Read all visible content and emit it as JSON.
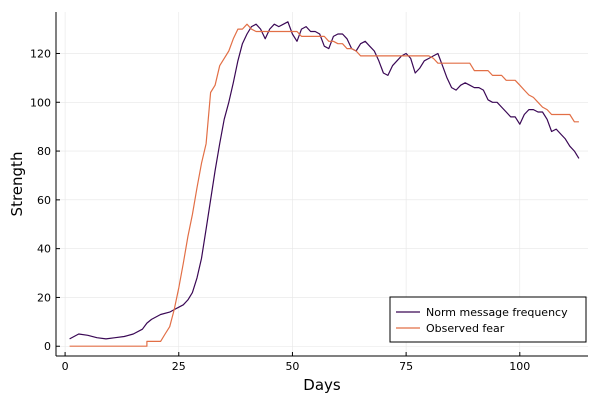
{
  "chart_data": {
    "type": "line",
    "title": "",
    "xlabel": "Days",
    "ylabel": "Strength",
    "xlim": [
      -2,
      115
    ],
    "ylim": [
      -4,
      137
    ],
    "xticks": [
      0,
      25,
      50,
      75,
      100
    ],
    "yticks": [
      0,
      20,
      40,
      60,
      80,
      100,
      120
    ],
    "grid": true,
    "legend_position": "bottom-right",
    "series": [
      {
        "name": "Norm message frequency",
        "color": "#3a0855",
        "points": [
          [
            1,
            3
          ],
          [
            3,
            5
          ],
          [
            5,
            4.5
          ],
          [
            7,
            3.5
          ],
          [
            9,
            3
          ],
          [
            11,
            3.5
          ],
          [
            13,
            4
          ],
          [
            15,
            5
          ],
          [
            17,
            7
          ],
          [
            18,
            9.5
          ],
          [
            19,
            11
          ],
          [
            21,
            13
          ],
          [
            23,
            14
          ],
          [
            24,
            15
          ],
          [
            25,
            16
          ],
          [
            26,
            17
          ],
          [
            27,
            19
          ],
          [
            28,
            22
          ],
          [
            29,
            28
          ],
          [
            30,
            36
          ],
          [
            31,
            48
          ],
          [
            32,
            60
          ],
          [
            33,
            72
          ],
          [
            34,
            83
          ],
          [
            35,
            93
          ],
          [
            36,
            100
          ],
          [
            37,
            108
          ],
          [
            38,
            117
          ],
          [
            39,
            124
          ],
          [
            40,
            128
          ],
          [
            41,
            131
          ],
          [
            42,
            132
          ],
          [
            43,
            130
          ],
          [
            44,
            126
          ],
          [
            45,
            130
          ],
          [
            46,
            132
          ],
          [
            47,
            131
          ],
          [
            48,
            132
          ],
          [
            49,
            133
          ],
          [
            50,
            128
          ],
          [
            51,
            125
          ],
          [
            52,
            130
          ],
          [
            53,
            131
          ],
          [
            54,
            129
          ],
          [
            55,
            129
          ],
          [
            56,
            128
          ],
          [
            57,
            123
          ],
          [
            58,
            122
          ],
          [
            59,
            127
          ],
          [
            60,
            128
          ],
          [
            61,
            128
          ],
          [
            62,
            126
          ],
          [
            63,
            122
          ],
          [
            64,
            121
          ],
          [
            65,
            124
          ],
          [
            66,
            125
          ],
          [
            67,
            123
          ],
          [
            68,
            121
          ],
          [
            69,
            117
          ],
          [
            70,
            112
          ],
          [
            71,
            111
          ],
          [
            72,
            115
          ],
          [
            73,
            117
          ],
          [
            74,
            119
          ],
          [
            75,
            120
          ],
          [
            76,
            118
          ],
          [
            77,
            112
          ],
          [
            78,
            114
          ],
          [
            79,
            117
          ],
          [
            80,
            118
          ],
          [
            81,
            119
          ],
          [
            82,
            120
          ],
          [
            83,
            115
          ],
          [
            84,
            110
          ],
          [
            85,
            106
          ],
          [
            86,
            105
          ],
          [
            87,
            107
          ],
          [
            88,
            108
          ],
          [
            89,
            107
          ],
          [
            90,
            106
          ],
          [
            91,
            106
          ],
          [
            92,
            105
          ],
          [
            93,
            101
          ],
          [
            94,
            100
          ],
          [
            95,
            100
          ],
          [
            96,
            98
          ],
          [
            97,
            96
          ],
          [
            98,
            94
          ],
          [
            99,
            94
          ],
          [
            100,
            91
          ],
          [
            101,
            95
          ],
          [
            102,
            97
          ],
          [
            103,
            97
          ],
          [
            104,
            96
          ],
          [
            105,
            96
          ],
          [
            106,
            93
          ],
          [
            107,
            88
          ],
          [
            108,
            89
          ],
          [
            109,
            87
          ],
          [
            110,
            85
          ],
          [
            111,
            82
          ],
          [
            112,
            80
          ],
          [
            113,
            77
          ]
        ]
      },
      {
        "name": "Observed fear",
        "color": "#e26f46",
        "points": [
          [
            1,
            0
          ],
          [
            18,
            0
          ],
          [
            18,
            2
          ],
          [
            21,
            2
          ],
          [
            22,
            5
          ],
          [
            23,
            8
          ],
          [
            24,
            15
          ],
          [
            25,
            24
          ],
          [
            26,
            34
          ],
          [
            27,
            45
          ],
          [
            28,
            54
          ],
          [
            29,
            65
          ],
          [
            30,
            75
          ],
          [
            31,
            83
          ],
          [
            32,
            104
          ],
          [
            33,
            107
          ],
          [
            34,
            115
          ],
          [
            35,
            118
          ],
          [
            36,
            121
          ],
          [
            37,
            126
          ],
          [
            38,
            130
          ],
          [
            39,
            130
          ],
          [
            40,
            132
          ],
          [
            41,
            130
          ],
          [
            42,
            129
          ],
          [
            43,
            129
          ],
          [
            45,
            129
          ],
          [
            48,
            129
          ],
          [
            51,
            129
          ],
          [
            52,
            127
          ],
          [
            54,
            127
          ],
          [
            56,
            127
          ],
          [
            57,
            127
          ],
          [
            58,
            125
          ],
          [
            59,
            125
          ],
          [
            60,
            124
          ],
          [
            61,
            124
          ],
          [
            62,
            122
          ],
          [
            63,
            122
          ],
          [
            64,
            121
          ],
          [
            65,
            119
          ],
          [
            68,
            119
          ],
          [
            72,
            119
          ],
          [
            76,
            119
          ],
          [
            80,
            119
          ],
          [
            81,
            118
          ],
          [
            82,
            116
          ],
          [
            85,
            116
          ],
          [
            89,
            116
          ],
          [
            90,
            113
          ],
          [
            93,
            113
          ],
          [
            94,
            111
          ],
          [
            96,
            111
          ],
          [
            97,
            109
          ],
          [
            99,
            109
          ],
          [
            100,
            107
          ],
          [
            101,
            105
          ],
          [
            102,
            103
          ],
          [
            103,
            102
          ],
          [
            104,
            100
          ],
          [
            105,
            98
          ],
          [
            106,
            97
          ],
          [
            107,
            95
          ],
          [
            111,
            95
          ],
          [
            112,
            92
          ],
          [
            113,
            92
          ]
        ]
      }
    ]
  }
}
